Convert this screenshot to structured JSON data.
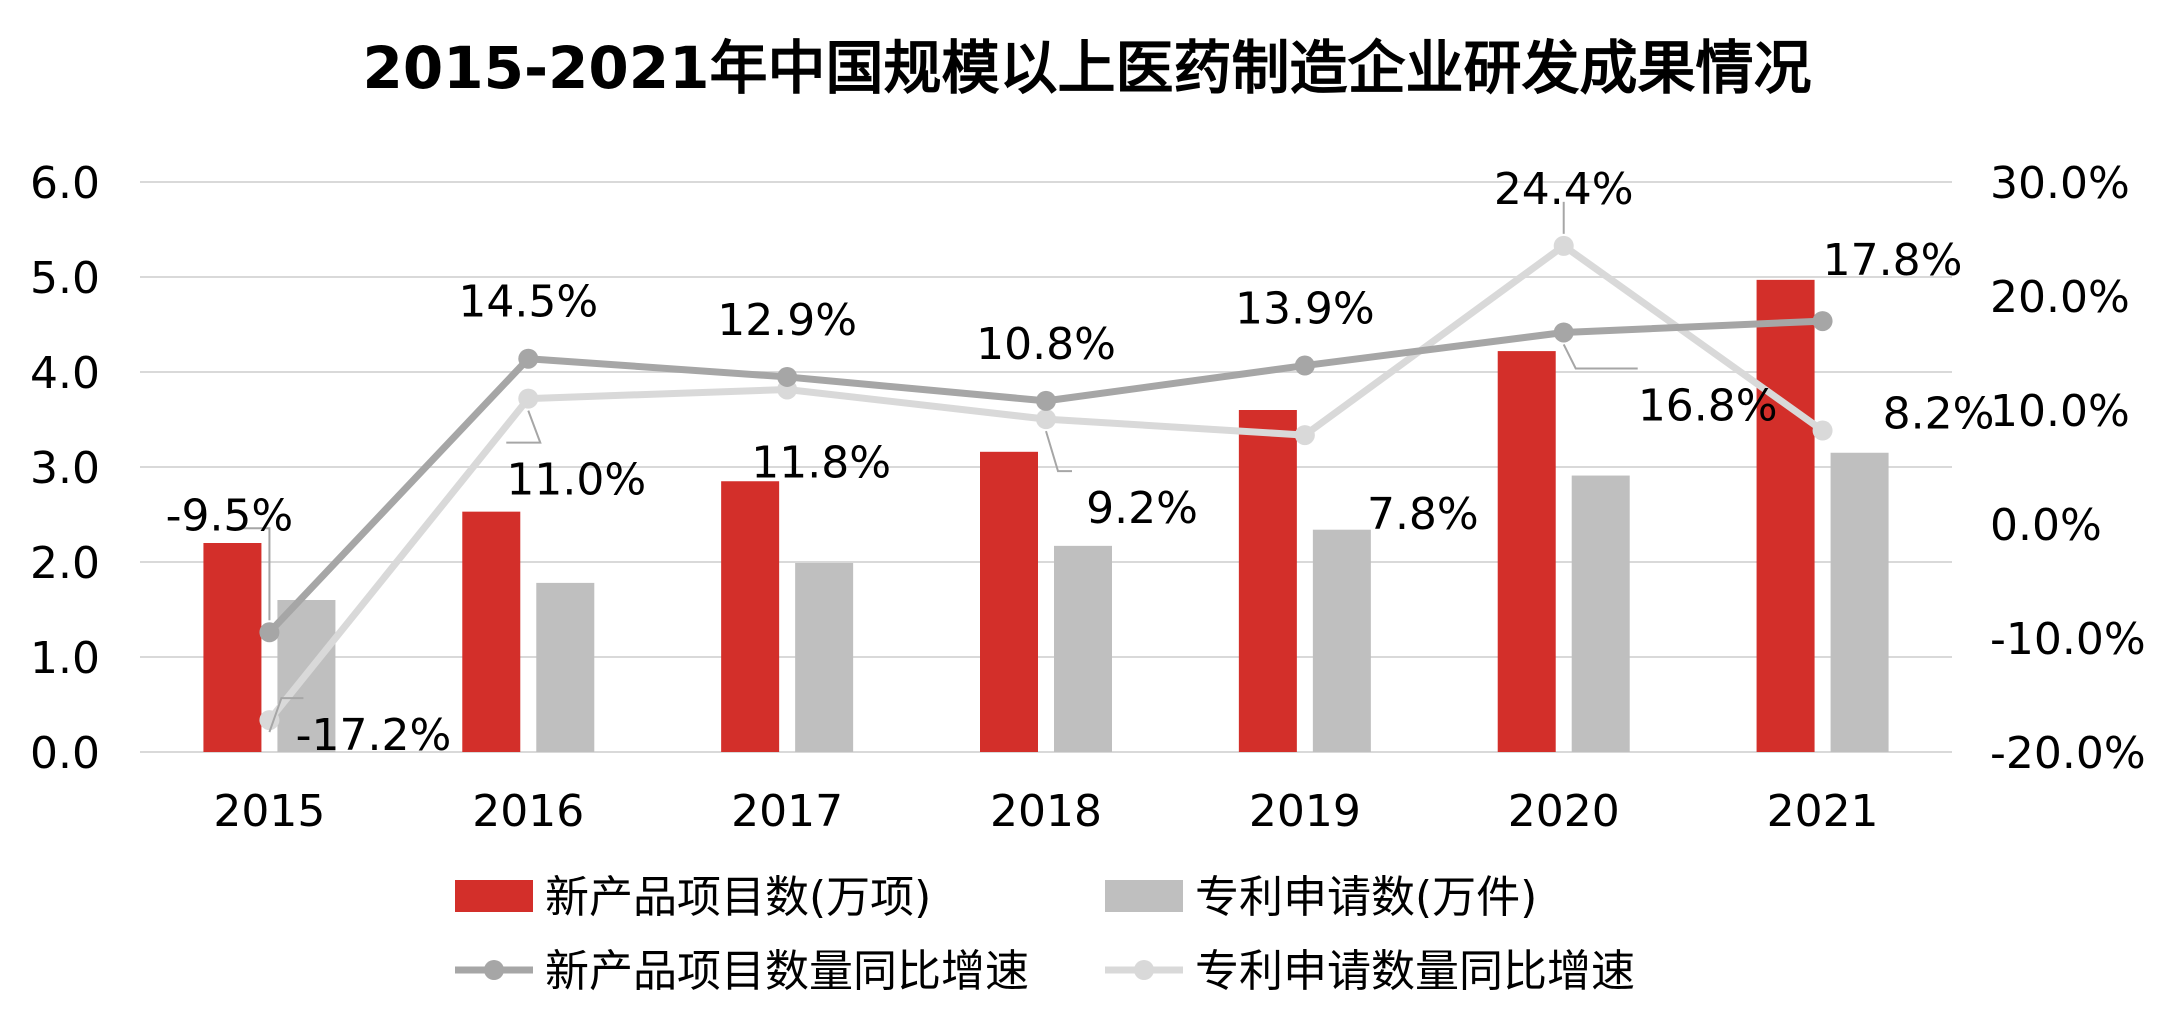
{
  "chart_data": {
    "type": "bar",
    "title": "2015-2021年中国规模以上医药制造企业研发成果情况",
    "categories": [
      "2015",
      "2016",
      "2017",
      "2018",
      "2019",
      "2020",
      "2021"
    ],
    "y_left": {
      "ylim": [
        0,
        6
      ],
      "ticks": [
        "0.0",
        "1.0",
        "2.0",
        "3.0",
        "4.0",
        "5.0",
        "6.0"
      ],
      "tick_values": [
        0,
        1,
        2,
        3,
        4,
        5,
        6
      ]
    },
    "y_right": {
      "ylim": [
        -20,
        30
      ],
      "ticks": [
        "-20.0%",
        "-10.0%",
        "0.0%",
        "10.0%",
        "20.0%",
        "30.0%"
      ],
      "tick_values": [
        -20,
        -10,
        0,
        10,
        20,
        30
      ]
    },
    "series": [
      {
        "name": "新产品项目数(万项)",
        "kind": "bar",
        "axis": "left",
        "color": "#d32f2a",
        "values": [
          2.2,
          2.53,
          2.85,
          3.16,
          3.6,
          4.22,
          4.97
        ]
      },
      {
        "name": "专利申请数(万件)",
        "kind": "bar",
        "axis": "left",
        "color": "#bfbfbf",
        "values": [
          1.6,
          1.78,
          1.99,
          2.17,
          2.34,
          2.91,
          3.15
        ]
      },
      {
        "name": "新产品项目数量同比增速",
        "kind": "line",
        "axis": "right",
        "color": "#a6a6a6",
        "values": [
          -9.5,
          14.5,
          12.9,
          10.8,
          13.9,
          16.8,
          17.8
        ],
        "labels": [
          "-9.5%",
          "14.5%",
          "12.9%",
          "10.8%",
          "13.9%",
          "16.8%",
          "17.8%"
        ]
      },
      {
        "name": "专利申请数量同比增速",
        "kind": "line",
        "axis": "right",
        "color": "#d9d9d9",
        "values": [
          -17.2,
          11.0,
          11.8,
          9.2,
          7.8,
          24.4,
          8.2
        ],
        "labels": [
          "-17.2%",
          "11.0%",
          "11.8%",
          "9.2%",
          "7.8%",
          "24.4%",
          "8.2%"
        ]
      }
    ],
    "legend_position": "bottom"
  }
}
